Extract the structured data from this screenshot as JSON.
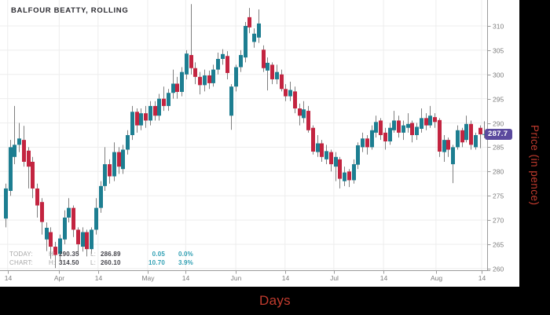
{
  "chart": {
    "title": "BALFOUR BEATTY, ROLLING",
    "price_tag": {
      "value": "287.7"
    },
    "axes": {
      "x_title": "Days",
      "y_title": "Price (in pence)"
    },
    "stats": {
      "rows": [
        {
          "label": "TODAY:",
          "h_key": "H:",
          "h": "290.35",
          "l_key": "L:",
          "l": "286.89",
          "change": "0.05",
          "pct": "0.0%"
        },
        {
          "label": "CHART:",
          "h_key": "H:",
          "h": "314.50",
          "l_key": "L:",
          "l": "260.10",
          "change": "10.70",
          "pct": "3.9%"
        }
      ]
    }
  },
  "chart_data": {
    "type": "candlestick",
    "title": "BALFOUR BEATTY, ROLLING",
    "xlabel": "Days",
    "ylabel": "Price (in pence)",
    "x_unit": "trading days, mid-March to mid-August",
    "ylim": [
      258,
      316
    ],
    "grid": true,
    "y_ticks": [
      260,
      265,
      270,
      275,
      280,
      285,
      290,
      295,
      300,
      305,
      310
    ],
    "x_ticks": [
      {
        "label": "14",
        "pos": 0.5
      },
      {
        "label": "Apr",
        "pos": 11.9
      },
      {
        "label": "14",
        "pos": 20.5
      },
      {
        "label": "May",
        "pos": 31.5
      },
      {
        "label": "14",
        "pos": 39.9
      },
      {
        "label": "Jun",
        "pos": 51.0
      },
      {
        "label": "14",
        "pos": 61.9
      },
      {
        "label": "Jul",
        "pos": 72.7
      },
      {
        "label": "14",
        "pos": 83.7
      },
      {
        "label": "Aug",
        "pos": 95.3
      },
      {
        "label": "14",
        "pos": 105.4
      }
    ],
    "last_price": 287.7,
    "today": {
      "high": 290.35,
      "low": 286.89,
      "change": 0.05,
      "change_pct": "0.0%"
    },
    "chart_range": {
      "high": 314.5,
      "low": 260.1,
      "change": 10.7,
      "change_pct": "3.9%"
    },
    "colors": {
      "up": "#1d7e91",
      "down": "#c32440",
      "wick": "#7f7f7f",
      "grid": "#ededed",
      "axis": "#9b9b9b",
      "tick_text": "#7d7d7d",
      "tag": "#5b4a9e",
      "accent_red": "#c23b2e",
      "stat_teal": "#2f9fb3"
    },
    "ohlc": [
      [
        270.3,
        277.5,
        268.5,
        276.5
      ],
      [
        276,
        286.5,
        275,
        285
      ],
      [
        283,
        293.5,
        281.5,
        285.5
      ],
      [
        285.5,
        290,
        284,
        286.8
      ],
      [
        286.5,
        289.4,
        281,
        282
      ],
      [
        284.3,
        285,
        276.5,
        281
      ],
      [
        282,
        283,
        274.5,
        276.5
      ],
      [
        276.5,
        277.5,
        270.5,
        273
      ],
      [
        273.7,
        274.5,
        267,
        269.6
      ],
      [
        266,
        269.5,
        263.6,
        268.4
      ],
      [
        267.5,
        268.5,
        262,
        264.5
      ],
      [
        264.5,
        265.5,
        260.1,
        262.8
      ],
      [
        263,
        267,
        261.5,
        266.2
      ],
      [
        266,
        272,
        265,
        270.5
      ],
      [
        270.5,
        274.5,
        269.5,
        272.5
      ],
      [
        272.5,
        273,
        266.5,
        268
      ],
      [
        268,
        268.5,
        263,
        265
      ],
      [
        264.5,
        268.5,
        263.5,
        267.5
      ],
      [
        267.5,
        268,
        262.5,
        264
      ],
      [
        264,
        268.5,
        263,
        268
      ],
      [
        268,
        274.5,
        267,
        272.5
      ],
      [
        272.5,
        278,
        271.5,
        277
      ],
      [
        277,
        285,
        276,
        281.5
      ],
      [
        281.5,
        282.5,
        277.5,
        279
      ],
      [
        279,
        286,
        278,
        284
      ],
      [
        284,
        285,
        279.5,
        281
      ],
      [
        280.5,
        285.5,
        279.5,
        284.5
      ],
      [
        284.5,
        288.5,
        283.5,
        287.5
      ],
      [
        287.5,
        293.5,
        286.5,
        292.3
      ],
      [
        292.3,
        293,
        288,
        289.5
      ],
      [
        289.5,
        293,
        288.5,
        292
      ],
      [
        292,
        293.5,
        289,
        290.5
      ],
      [
        290.5,
        294.5,
        289.5,
        293.5
      ],
      [
        293.5,
        294.5,
        290.5,
        291.5
      ],
      [
        291.5,
        296,
        290.5,
        295
      ],
      [
        295,
        297.5,
        292.5,
        293.5
      ],
      [
        293.5,
        297,
        292.5,
        296.2
      ],
      [
        296.2,
        301,
        295,
        298.1
      ],
      [
        298.1,
        299.5,
        295,
        296.4
      ],
      [
        296.4,
        301.5,
        295.5,
        300.5
      ],
      [
        300,
        305,
        299,
        304.3
      ],
      [
        304,
        314.5,
        300,
        301.3
      ],
      [
        301.3,
        302.5,
        298,
        299.5
      ],
      [
        299.5,
        300.5,
        295.9,
        297.8
      ],
      [
        297.8,
        301,
        296.5,
        299.8
      ],
      [
        299.8,
        300.8,
        297,
        298.2
      ],
      [
        298.2,
        302,
        297.5,
        301
      ],
      [
        301,
        304.5,
        300,
        303.2
      ],
      [
        303.2,
        305.2,
        302,
        304.2
      ],
      [
        303.8,
        304.8,
        299,
        300.3
      ],
      [
        291.5,
        298,
        288.6,
        297.5
      ],
      [
        297.5,
        302,
        296.5,
        301.5
      ],
      [
        301.5,
        305,
        300.5,
        304
      ],
      [
        303.5,
        310.8,
        302.5,
        310
      ],
      [
        311.8,
        313.7,
        308.5,
        309.7
      ],
      [
        306.7,
        309.5,
        305.5,
        308.4
      ],
      [
        307.6,
        313.4,
        306.5,
        310.5
      ],
      [
        305.1,
        306,
        300.5,
        301.3
      ],
      [
        300.8,
        303.5,
        296.7,
        302.4
      ],
      [
        302,
        302.5,
        298,
        299
      ],
      [
        299,
        302,
        298,
        300.5
      ],
      [
        300,
        301,
        296.5,
        297
      ],
      [
        297,
        298,
        294.5,
        295.5
      ],
      [
        295.5,
        298.5,
        294.5,
        296.8
      ],
      [
        296.5,
        297.5,
        292,
        293
      ],
      [
        293,
        294,
        289.5,
        291.5
      ],
      [
        291,
        294.5,
        290,
        292.8
      ],
      [
        292.5,
        293.5,
        288,
        288.5
      ],
      [
        289,
        289.5,
        283.5,
        284.1
      ],
      [
        284,
        287.5,
        283,
        285.8
      ],
      [
        285.8,
        286.5,
        282,
        283
      ],
      [
        282.5,
        285.5,
        281.5,
        284.2
      ],
      [
        284,
        284.5,
        280,
        281.5
      ],
      [
        281,
        284,
        278,
        283
      ],
      [
        282.5,
        283,
        276.5,
        278.5
      ],
      [
        278,
        281,
        277,
        279.8
      ],
      [
        280,
        280.5,
        276.8,
        278.2
      ],
      [
        278.2,
        282.5,
        277.5,
        281.5
      ],
      [
        281.4,
        286,
        280.5,
        285.4
      ],
      [
        285,
        288,
        284,
        286.8
      ],
      [
        286.8,
        287.5,
        283.5,
        285
      ],
      [
        285,
        289.5,
        284.5,
        288.5
      ],
      [
        288,
        291.5,
        287,
        290.2
      ],
      [
        290.5,
        291,
        286.5,
        287.5
      ],
      [
        288,
        289,
        284.5,
        286.2
      ],
      [
        286.2,
        290,
        285.5,
        289
      ],
      [
        288.5,
        292.5,
        288,
        290.5
      ],
      [
        290.5,
        291.5,
        287,
        288
      ],
      [
        288,
        290.5,
        286.5,
        289.5
      ],
      [
        289,
        292,
        288,
        289.8
      ],
      [
        290,
        290.5,
        286,
        287.5
      ],
      [
        287.5,
        290,
        286.5,
        289.2
      ],
      [
        288.8,
        293,
        288,
        291
      ],
      [
        291,
        292,
        288.5,
        289.5
      ],
      [
        289.5,
        293.5,
        289,
        291.5
      ],
      [
        291.2,
        292,
        289,
        290.2
      ],
      [
        290.6,
        291,
        283,
        284.1
      ],
      [
        284,
        287.5,
        282,
        286.5
      ],
      [
        286.5,
        287,
        283,
        284.5
      ],
      [
        281.5,
        285.5,
        277.6,
        285
      ],
      [
        285,
        289.5,
        284.5,
        288.5
      ],
      [
        288.5,
        289,
        285,
        286
      ],
      [
        286.5,
        291.5,
        286,
        289.8
      ],
      [
        289.8,
        290.5,
        284.5,
        285.5
      ],
      [
        285,
        288,
        284.5,
        287.5
      ],
      [
        289,
        289.5,
        284.8,
        287.65
      ],
      [
        287.65,
        290.35,
        286.89,
        287.7
      ]
    ]
  }
}
